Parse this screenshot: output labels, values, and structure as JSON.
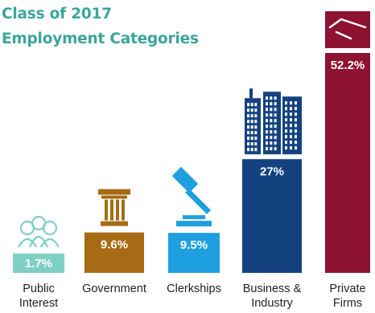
{
  "chart_data": {
    "type": "bar",
    "title": [
      "Class of 2017",
      "Employment Categories"
    ],
    "categories": [
      {
        "lines": [
          "Public",
          "Interest"
        ]
      },
      {
        "lines": [
          "Government"
        ]
      },
      {
        "lines": [
          "Clerkships"
        ]
      },
      {
        "lines": [
          "Business &",
          "Industry"
        ]
      },
      {
        "lines": [
          "Private",
          "Firms"
        ]
      }
    ],
    "values": [
      1.7,
      9.6,
      9.5,
      27,
      52.2
    ],
    "value_labels": [
      "1.7%",
      "9.6%",
      "9.5%",
      "27%",
      "52.2%"
    ],
    "icons": [
      "people-icon",
      "column-icon",
      "gavel-icon",
      "buildings-icon",
      "handshake-icon"
    ],
    "colors": [
      "#7fcfc3",
      "#a66b14",
      "#1e9fe0",
      "#13427f",
      "#8e1232"
    ],
    "label_text_color": "#ffffff"
  }
}
